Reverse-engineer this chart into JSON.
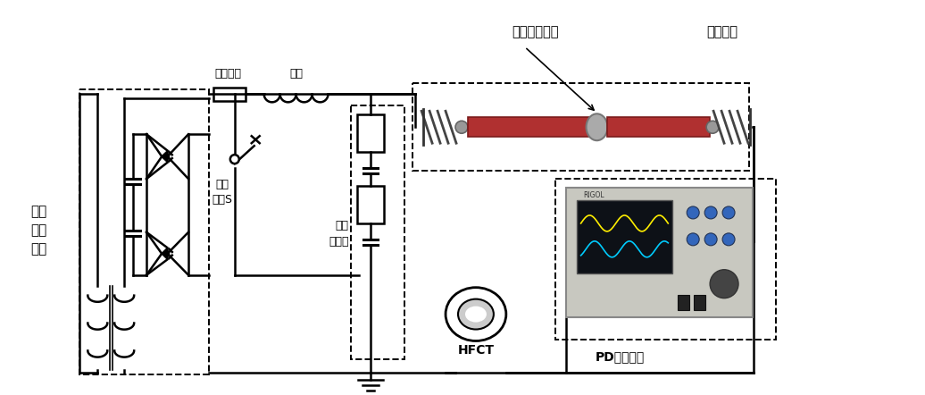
{
  "bg_color": "#ffffff",
  "line_color": "#000000",
  "label_gaoyadianliu": "高压\n直流\n电源",
  "label_xianliu": "限流电阻",
  "label_diangan": "电感",
  "label_gaoyakaiguan": "高压\n开关S",
  "label_zurongfenyadiqi": "阻容\n分压器",
  "label_gaoyajianduanquexian": "高压尖端缺陷",
  "label_quexiandianlan": "缺陷电缆",
  "label_HFCT": "HFCT",
  "label_PD": "PD采集单元",
  "cable_red": "#b03030",
  "cable_connector_color": "#888888"
}
